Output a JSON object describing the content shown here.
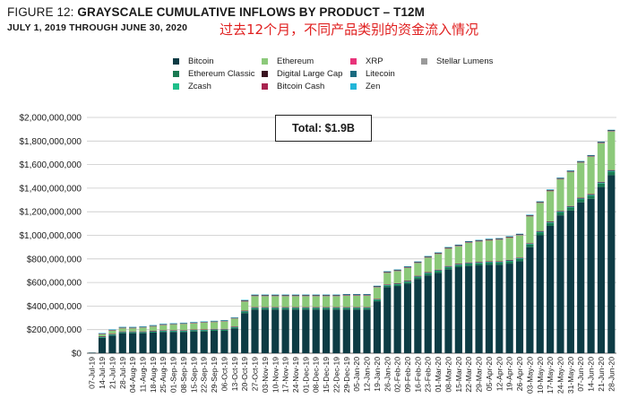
{
  "header": {
    "figure_label": "FIGURE 12: ",
    "title_bold": "GRAYSCALE CUMULATIVE INFLOWS BY PRODUCT – T12M",
    "subtitle": "JULY 1, 2019 THROUGH JUNE 30, 2020",
    "annotation": "过去12个月，不同产品类别的资金流入情况"
  },
  "total_box": "Total: $1.9B",
  "colors": {
    "bitcoin": "#0d3b44",
    "ethereum": "#8cc97a",
    "xrp": "#e8337a",
    "stellar": "#9a9a9a",
    "ethereum_classic": "#1a7a52",
    "digital_large_cap": "#3a1420",
    "litecoin": "#1a6b80",
    "zcash": "#1fbf8a",
    "bitcoin_cash": "#a8234f",
    "zen": "#22b6d8"
  },
  "legend": [
    {
      "key": "bitcoin",
      "label": "Bitcoin"
    },
    {
      "key": "ethereum",
      "label": "Ethereum"
    },
    {
      "key": "xrp",
      "label": "XRP"
    },
    {
      "key": "stellar",
      "label": "Stellar Lumens"
    },
    {
      "key": "ethereum_classic",
      "label": "Ethereum Classic"
    },
    {
      "key": "digital_large_cap",
      "label": "Digital Large Cap"
    },
    {
      "key": "litecoin",
      "label": "Litecoin"
    },
    {
      "key": "zcash",
      "label": "Zcash"
    },
    {
      "key": "bitcoin_cash",
      "label": "Bitcoin Cash"
    },
    {
      "key": "zen",
      "label": "Zen"
    }
  ],
  "chart_data": {
    "type": "bar",
    "stacked": true,
    "ylim": [
      0,
      2000000000
    ],
    "y_ticks": [
      "$0",
      "$200,000,000",
      "$400,000,000",
      "$600,000,000",
      "$800,000,000",
      "$1,000,000,000",
      "$1,200,000,000",
      "$1,400,000,000",
      "$1,600,000,000",
      "$1,800,000,000",
      "$2,000,000,000"
    ],
    "grid": "horizontal",
    "legend_position": "top",
    "x_tick_labels": [
      "07-Jul-19",
      "14-Jul-19",
      "21-Jul-19",
      "28-Jul-19",
      "04-Aug-19",
      "11-Aug-19",
      "18-Aug-19",
      "25-Aug-19",
      "01-Sep-19",
      "08-Sep-19",
      "15-Sep-19",
      "22-Sep-19",
      "29-Sep-19",
      "06-Oct-19",
      "13-Oct-19",
      "20-Oct-19",
      "27-Oct-19",
      "03-Nov-19",
      "10-Nov-19",
      "17-Nov-19",
      "24-Nov-19",
      "01-Dec-19",
      "08-Dec-19",
      "15-Dec-19",
      "22-Dec-19",
      "29-Dec-19",
      "05-Jan-20",
      "12-Jan-20",
      "19-Jan-20",
      "26-Jan-20",
      "02-Feb-20",
      "09-Feb-20",
      "16-Feb-20",
      "23-Feb-20",
      "01-Mar-20",
      "08-Mar-20",
      "15-Mar-20",
      "22-Mar-20",
      "29-Mar-20",
      "05-Apr-20",
      "12-Apr-20",
      "19-Apr-20",
      "26-Apr-20",
      "03-May-20",
      "10-May-20",
      "17-May-20",
      "24-May-20",
      "31-May-20",
      "07-Jun-20",
      "14-Jun-20",
      "21-Jun-20",
      "28-Jun-20"
    ],
    "series": [
      {
        "name": "Bitcoin",
        "key": "bitcoin",
        "values": [
          5000000,
          130000000,
          150000000,
          170000000,
          170000000,
          170000000,
          175000000,
          180000000,
          180000000,
          180000000,
          185000000,
          185000000,
          190000000,
          190000000,
          210000000,
          340000000,
          370000000,
          370000000,
          370000000,
          370000000,
          370000000,
          370000000,
          370000000,
          370000000,
          370000000,
          370000000,
          370000000,
          370000000,
          440000000,
          560000000,
          570000000,
          590000000,
          630000000,
          660000000,
          680000000,
          710000000,
          730000000,
          740000000,
          745000000,
          750000000,
          750000000,
          760000000,
          780000000,
          900000000,
          1000000000,
          1080000000,
          1170000000,
          1210000000,
          1280000000,
          1310000000,
          1410000000,
          1510000000
        ]
      },
      {
        "name": "Ethereum Classic",
        "key": "ethereum_classic",
        "values": [
          0,
          5000000,
          5000000,
          6000000,
          6000000,
          6000000,
          6000000,
          7000000,
          7000000,
          7000000,
          7000000,
          8000000,
          8000000,
          8000000,
          8000000,
          10000000,
          10000000,
          10000000,
          10000000,
          10000000,
          10000000,
          10000000,
          10000000,
          10000000,
          10000000,
          10000000,
          10000000,
          10000000,
          10000000,
          12000000,
          12000000,
          14000000,
          15000000,
          16000000,
          17000000,
          18000000,
          18000000,
          18000000,
          18000000,
          18000000,
          18000000,
          20000000,
          20000000,
          22000000,
          24000000,
          25000000,
          25000000,
          26000000,
          26000000,
          27000000,
          30000000,
          30000000
        ]
      },
      {
        "name": "Zcash",
        "key": "zcash",
        "values": [
          0,
          2000000,
          2000000,
          2000000,
          2000000,
          2000000,
          2000000,
          2000000,
          2000000,
          2000000,
          2000000,
          2000000,
          2000000,
          2000000,
          2000000,
          3000000,
          3000000,
          3000000,
          3000000,
          3000000,
          3000000,
          3000000,
          3000000,
          3000000,
          3000000,
          3000000,
          3000000,
          3000000,
          3000000,
          3000000,
          3000000,
          3000000,
          3000000,
          3000000,
          3000000,
          3000000,
          3000000,
          3000000,
          3000000,
          3000000,
          3000000,
          3000000,
          3000000,
          3000000,
          3000000,
          3000000,
          3000000,
          3000000,
          3000000,
          3000000,
          3000000,
          3000000
        ]
      },
      {
        "name": "Litecoin",
        "key": "litecoin",
        "values": [
          0,
          4000000,
          4000000,
          4000000,
          4000000,
          4000000,
          4000000,
          4000000,
          4000000,
          4000000,
          4000000,
          4000000,
          4000000,
          4000000,
          4000000,
          5000000,
          5000000,
          5000000,
          5000000,
          5000000,
          5000000,
          5000000,
          5000000,
          5000000,
          5000000,
          5000000,
          5000000,
          5000000,
          5000000,
          6000000,
          6000000,
          6000000,
          6000000,
          6000000,
          6000000,
          6000000,
          6000000,
          6000000,
          6000000,
          6000000,
          6000000,
          6000000,
          6000000,
          6000000,
          7000000,
          7000000,
          7000000,
          7000000,
          7000000,
          7000000,
          8000000,
          8000000
        ]
      },
      {
        "name": "Bitcoin Cash",
        "key": "bitcoin_cash",
        "values": [
          0,
          3000000,
          3000000,
          3000000,
          3000000,
          3000000,
          3000000,
          3000000,
          3000000,
          3000000,
          3000000,
          3000000,
          3000000,
          3000000,
          3000000,
          3000000,
          3000000,
          3000000,
          3000000,
          3000000,
          3000000,
          3000000,
          3000000,
          3000000,
          3000000,
          3000000,
          3000000,
          3000000,
          3000000,
          3000000,
          3000000,
          3000000,
          3000000,
          3000000,
          3000000,
          3000000,
          3000000,
          3000000,
          3000000,
          3000000,
          3000000,
          3000000,
          3000000,
          3000000,
          3000000,
          3000000,
          3000000,
          3000000,
          3000000,
          3000000,
          3000000,
          3000000
        ]
      },
      {
        "name": "Ethereum",
        "key": "ethereum",
        "values": [
          0,
          20000000,
          30000000,
          30000000,
          30000000,
          35000000,
          40000000,
          45000000,
          50000000,
          55000000,
          55000000,
          60000000,
          60000000,
          65000000,
          70000000,
          80000000,
          95000000,
          95000000,
          95000000,
          95000000,
          95000000,
          95000000,
          95000000,
          95000000,
          95000000,
          100000000,
          100000000,
          100000000,
          100000000,
          100000000,
          105000000,
          110000000,
          110000000,
          125000000,
          135000000,
          150000000,
          150000000,
          170000000,
          175000000,
          180000000,
          185000000,
          190000000,
          190000000,
          230000000,
          240000000,
          260000000,
          270000000,
          290000000,
          300000000,
          320000000,
          330000000,
          330000000
        ]
      },
      {
        "name": "XRP",
        "key": "xrp",
        "values": [
          0,
          1000000,
          1000000,
          1000000,
          1000000,
          1000000,
          1000000,
          1000000,
          1000000,
          1000000,
          1000000,
          1000000,
          1000000,
          1000000,
          1000000,
          1000000,
          1000000,
          1000000,
          1000000,
          1000000,
          1000000,
          1000000,
          1000000,
          1000000,
          1000000,
          1000000,
          1000000,
          1000000,
          1000000,
          1000000,
          1000000,
          1000000,
          1000000,
          1000000,
          1000000,
          1000000,
          1000000,
          1000000,
          1000000,
          1000000,
          1000000,
          1000000,
          1000000,
          1000000,
          1000000,
          1000000,
          1000000,
          1000000,
          1000000,
          1000000,
          1000000,
          1000000
        ]
      },
      {
        "name": "Stellar Lumens",
        "key": "stellar",
        "values": [
          0,
          1000000,
          1000000,
          1000000,
          1000000,
          1000000,
          1000000,
          1000000,
          1000000,
          1000000,
          1000000,
          1000000,
          1000000,
          1000000,
          1000000,
          1000000,
          1000000,
          1000000,
          1000000,
          1000000,
          1000000,
          1000000,
          1000000,
          1000000,
          1000000,
          1000000,
          1000000,
          1000000,
          1000000,
          1000000,
          1000000,
          1000000,
          1000000,
          1000000,
          1000000,
          1000000,
          1000000,
          1000000,
          1000000,
          1000000,
          1000000,
          1000000,
          1000000,
          1000000,
          1000000,
          1000000,
          1000000,
          1000000,
          1000000,
          1000000,
          1000000,
          1000000
        ]
      },
      {
        "name": "Digital Large Cap",
        "key": "digital_large_cap",
        "values": [
          0,
          4000000,
          5000000,
          5000000,
          5000000,
          5000000,
          5000000,
          5000000,
          5000000,
          5000000,
          5000000,
          5000000,
          5000000,
          5000000,
          5000000,
          8000000,
          8000000,
          8000000,
          8000000,
          8000000,
          8000000,
          8000000,
          8000000,
          8000000,
          8000000,
          8000000,
          8000000,
          8000000,
          8000000,
          8000000,
          8000000,
          8000000,
          8000000,
          8000000,
          8000000,
          8000000,
          8000000,
          8000000,
          8000000,
          8000000,
          8000000,
          8000000,
          8000000,
          8000000,
          8000000,
          8000000,
          8000000,
          8000000,
          8000000,
          8000000,
          8000000,
          8000000
        ]
      },
      {
        "name": "Zen",
        "key": "zen",
        "values": [
          0,
          1000000,
          1000000,
          1000000,
          1000000,
          1000000,
          1000000,
          1000000,
          1000000,
          1000000,
          1000000,
          1000000,
          1000000,
          1000000,
          1000000,
          1000000,
          1000000,
          1000000,
          1000000,
          1000000,
          1000000,
          1000000,
          1000000,
          1000000,
          1000000,
          1000000,
          1000000,
          1000000,
          1000000,
          1000000,
          1000000,
          1000000,
          1000000,
          1000000,
          1000000,
          1000000,
          1000000,
          1000000,
          1000000,
          1000000,
          1000000,
          1000000,
          1000000,
          1000000,
          1000000,
          1000000,
          1000000,
          1000000,
          1000000,
          1000000,
          1000000,
          1000000
        ]
      }
    ]
  }
}
